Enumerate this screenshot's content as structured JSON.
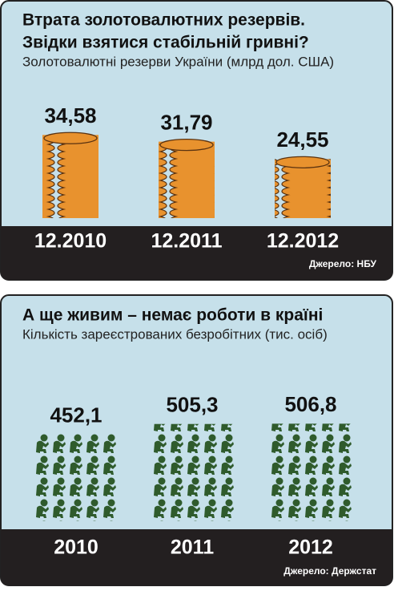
{
  "charts": [
    {
      "type": "coins",
      "title_lines": [
        "Втрата золотовалютних резервів.",
        "Звідки взятися стабільній гривні?"
      ],
      "subtitle": "Золотовалютні резерви України (млрд дол. США)",
      "categories": [
        "12.2010",
        "12.2011",
        "12.2012"
      ],
      "values": [
        34.58,
        31.79,
        24.55
      ],
      "value_labels": [
        "34,58",
        "31,79",
        "24,55"
      ],
      "color": "#e8922e",
      "source": "Джерело: НБУ"
    },
    {
      "type": "people",
      "title_lines": [
        "А ще живим – немає роботи в країні"
      ],
      "subtitle": "Кількість зареєстрованих безробітних (тис. осіб)",
      "categories": [
        "2010",
        "2011",
        "2012"
      ],
      "values": [
        452.1,
        505.3,
        506.8
      ],
      "value_labels": [
        "452,1",
        "505,3",
        "506,8"
      ],
      "color": "#2f5b2c",
      "source": "Джерело: Держстат"
    }
  ]
}
